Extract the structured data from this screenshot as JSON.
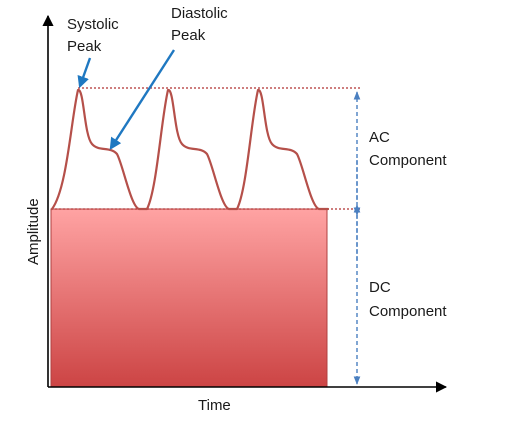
{
  "labels": {
    "systolic_line1": "Systolic",
    "systolic_line2": "Peak",
    "diastolic_line1": "Diastolic",
    "diastolic_line2": "Peak",
    "ac_line1": "AC",
    "ac_line2": "Component",
    "dc_line1": "DC",
    "dc_line2": "Component",
    "x_axis": "Time",
    "y_axis": "Amplitude"
  },
  "colors": {
    "waveform": "#b5504a",
    "dc_top": "#ffa3a3",
    "dc_bottom": "#cc4444",
    "arrow": "#1f78c1",
    "dotted_red": "#b03030",
    "dimension": "#4a7fc0",
    "axis": "#000000"
  }
}
